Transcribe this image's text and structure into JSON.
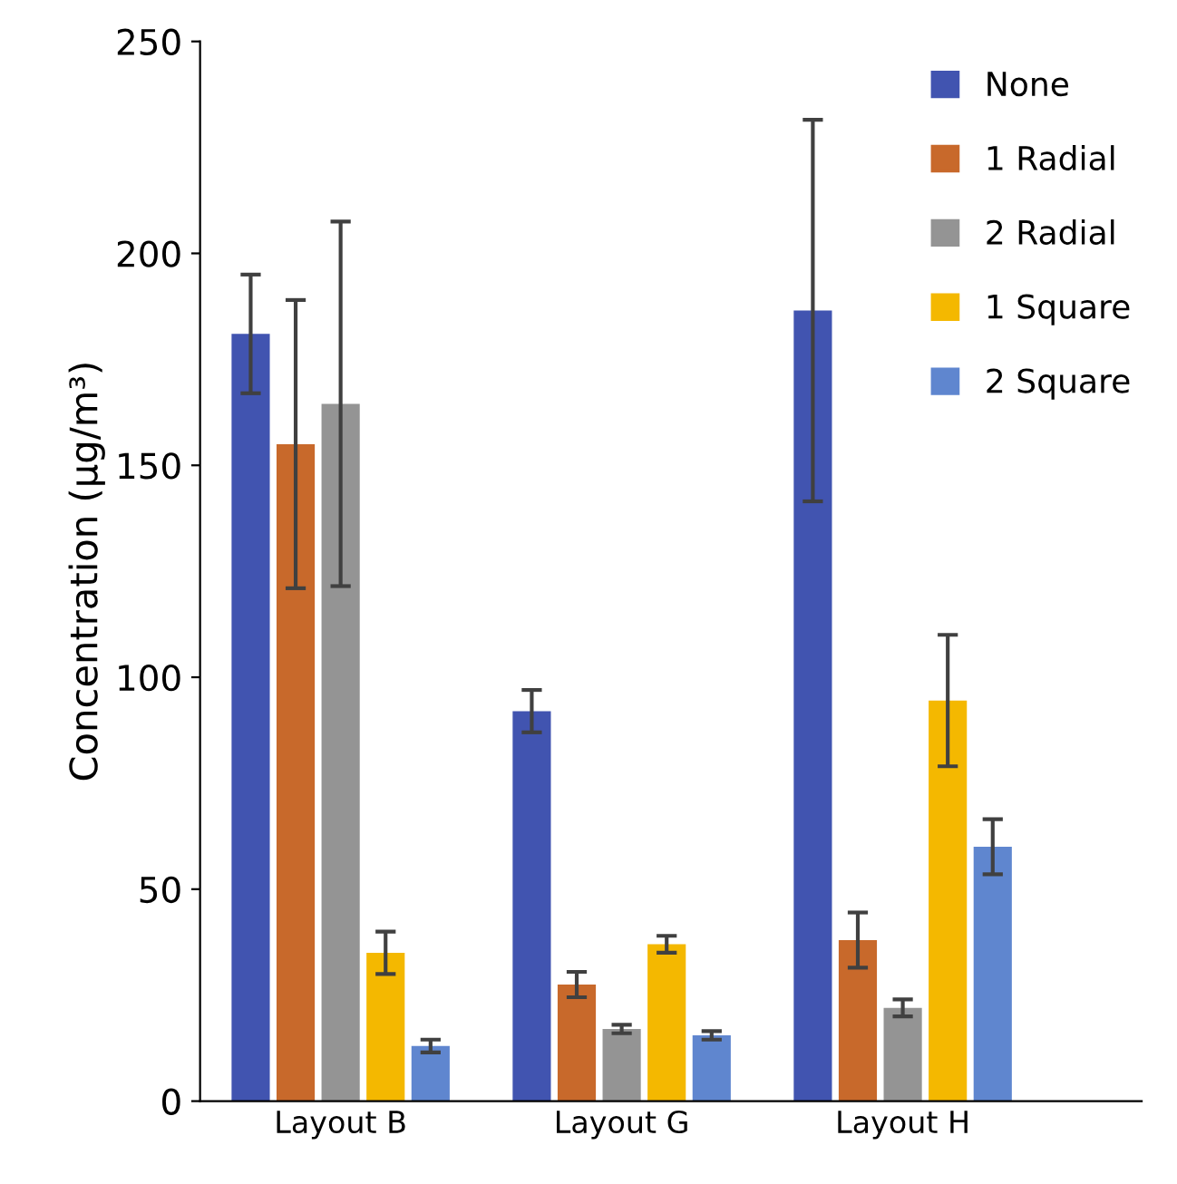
{
  "chart_data": {
    "type": "bar",
    "ylabel": "Concentration (µg/m³)",
    "categories": [
      "Layout B",
      "Layout G",
      "Layout H"
    ],
    "series": [
      {
        "name": "None",
        "color": "#4154b0",
        "values": [
          181,
          92,
          186.5
        ],
        "errors": [
          14,
          5,
          45
        ]
      },
      {
        "name": "1 Radial",
        "color": "#c8692b",
        "values": [
          155,
          27.5,
          38
        ],
        "errors": [
          34,
          3,
          6.5
        ]
      },
      {
        "name": "2 Radial",
        "color": "#949494",
        "values": [
          164.5,
          17,
          22
        ],
        "errors": [
          43,
          1,
          2
        ]
      },
      {
        "name": "1 Square",
        "color": "#f4b800",
        "values": [
          35,
          37,
          94.5
        ],
        "errors": [
          5,
          2,
          15.5
        ]
      },
      {
        "name": "2 Square",
        "color": "#5f86cf",
        "values": [
          13,
          15.5,
          60
        ],
        "errors": [
          1.5,
          1,
          6.5
        ]
      }
    ],
    "ylim": [
      0,
      250
    ],
    "yticks": [
      0,
      50,
      100,
      150,
      200,
      250
    ],
    "grid": false,
    "legend": "top right"
  }
}
